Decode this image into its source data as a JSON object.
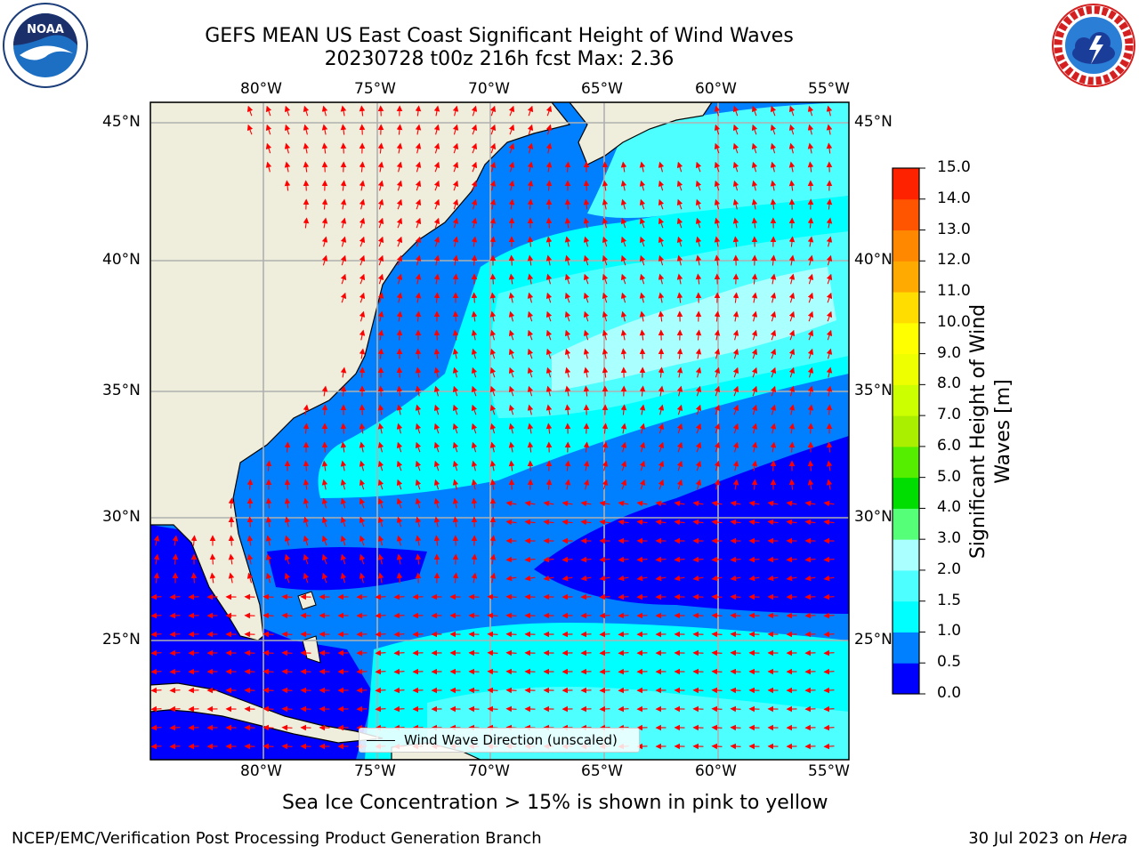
{
  "title": {
    "line1": "GEFS MEAN US East Coast Significant Height of Wind Waves",
    "line2": "20230728 t00z 216h fcst   Max: 2.36"
  },
  "logos": {
    "left": {
      "name": "noaa-logo",
      "text": "NOAA"
    },
    "right": {
      "name": "nws-logo",
      "text": "NATIONAL WEATHER SERVICE"
    }
  },
  "map": {
    "lon_labels": [
      "80°W",
      "75°W",
      "70°W",
      "65°W",
      "60°W",
      "55°W"
    ],
    "lat_labels": [
      "45°N",
      "40°N",
      "35°N",
      "30°N",
      "25°N"
    ],
    "colors": {
      "land": "#efeedc",
      "wave_0_0_5": "#0000ff",
      "wave_0_5_1": "#0080ff",
      "wave_1_1_5": "#00ffff",
      "wave_1_5_2": "#4dffff",
      "wave_2_3": "#aaffff",
      "arrow": "#ff0000",
      "grid": "#b0b0b0"
    },
    "legend_label": "Wind Wave Direction (unscaled)"
  },
  "colorbar": {
    "label": "Significant Height of Wind Waves [m]",
    "label_line1": "Significant Height of Wind",
    "label_line2": "Waves [m]",
    "ticks": [
      "15.0",
      "14.0",
      "13.0",
      "12.0",
      "11.0",
      "10.0",
      "9.0",
      "8.0",
      "7.0",
      "6.0",
      "5.0",
      "4.0",
      "3.0",
      "2.0",
      "1.5",
      "1.0",
      "0.5",
      "0.0"
    ],
    "colors": [
      "#0000ff",
      "#0080ff",
      "#00ffff",
      "#4dffff",
      "#aaffff",
      "#55ff77",
      "#00dd00",
      "#55ee00",
      "#aaee00",
      "#ccff00",
      "#eeff00",
      "#ffff00",
      "#ffdd00",
      "#ffaa00",
      "#ff8800",
      "#ff5500",
      "#ff2200"
    ]
  },
  "footer": {
    "sea_ice_note": "Sea Ice Concentration > 15% is shown in pink to yellow",
    "left": "NCEP/EMC/Verification Post Processing Product Generation Branch",
    "right_date": "30 Jul 2023 on ",
    "right_host": "Hera"
  }
}
